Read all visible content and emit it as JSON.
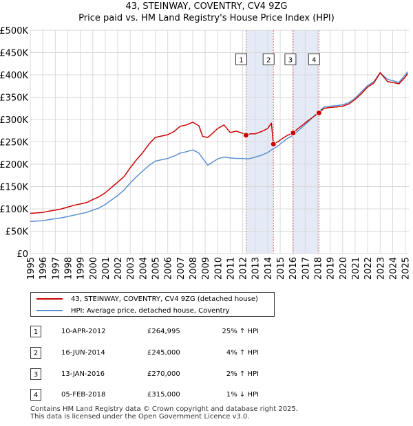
{
  "title_line1": "43, STEINWAY, COVENTRY, CV4 9ZG",
  "title_line2": "Price paid vs. HM Land Registry's House Price Index (HPI)",
  "colors": {
    "property": "#cc0000",
    "hpi": "#5b8fd0",
    "shade": "#dde6f5",
    "marker": "#cc0000"
  },
  "chart_data": {
    "type": "line",
    "title": "Price paid vs. HM Land Registry's House Price Index (HPI)",
    "xlabel": "",
    "ylabel": "",
    "xlim": [
      1995,
      2025.3
    ],
    "ylim": [
      0,
      500000
    ],
    "y_ticks": [
      0,
      50000,
      100000,
      150000,
      200000,
      250000,
      300000,
      350000,
      400000,
      450000,
      500000
    ],
    "y_tick_labels": [
      "£0",
      "£50K",
      "£100K",
      "£150K",
      "£200K",
      "£250K",
      "£300K",
      "£350K",
      "£400K",
      "£450K",
      "£500K"
    ],
    "x_ticks": [
      1995,
      1996,
      1997,
      1998,
      1999,
      2000,
      2001,
      2002,
      2003,
      2004,
      2005,
      2006,
      2007,
      2008,
      2009,
      2010,
      2011,
      2012,
      2013,
      2014,
      2015,
      2016,
      2017,
      2018,
      2019,
      2020,
      2021,
      2022,
      2023,
      2024,
      2025
    ],
    "x_tick_labels": [
      "1995",
      "1996",
      "1997",
      "1998",
      "1999",
      "2000",
      "2001",
      "2002",
      "2003",
      "2004",
      "2005",
      "2006",
      "2007",
      "2008",
      "2009",
      "2010",
      "2011",
      "2012",
      "2013",
      "2014",
      "2015",
      "2016",
      "2017",
      "2018",
      "2019",
      "2020",
      "2021",
      "2022",
      "2023",
      "2024",
      "2025"
    ],
    "grid": true,
    "shaded_ranges": [
      [
        2012.27,
        2014.46
      ],
      [
        2016.04,
        2018.1
      ]
    ],
    "series": [
      {
        "name": "43, STEINWAY, COVENTRY, CV4 9ZG (detached house)",
        "x": [
          1995.0,
          1996.0,
          1996.5,
          1997.0,
          1997.5,
          1998.0,
          1998.5,
          1999.0,
          1999.5,
          2000.0,
          2000.5,
          2001.0,
          2001.5,
          2002.0,
          2002.5,
          2003.0,
          2003.5,
          2004.0,
          2004.5,
          2005.0,
          2005.5,
          2006.0,
          2006.5,
          2007.0,
          2007.5,
          2008.0,
          2008.5,
          2008.8,
          2009.2,
          2009.5,
          2010.0,
          2010.5,
          2011.0,
          2011.5,
          2012.0,
          2012.27,
          2012.6,
          2013.0,
          2013.5,
          2014.0,
          2014.3,
          2014.46,
          2014.8,
          2015.2,
          2015.6,
          2016.04,
          2016.4,
          2016.8,
          2017.2,
          2017.6,
          2018.1,
          2018.5,
          2019.0,
          2019.5,
          2020.0,
          2020.5,
          2021.0,
          2021.5,
          2022.0,
          2022.5,
          2023.0,
          2023.3,
          2023.6,
          2024.0,
          2024.5,
          2025.0,
          2025.2
        ],
        "values": [
          90000,
          92000,
          95000,
          97000,
          100000,
          104000,
          108000,
          111000,
          114000,
          121000,
          127000,
          136000,
          148000,
          160000,
          172000,
          192000,
          210000,
          226000,
          245000,
          260000,
          263000,
          266000,
          273000,
          285000,
          288000,
          294000,
          286000,
          262000,
          260000,
          267000,
          280000,
          288000,
          271000,
          274000,
          269000,
          264995,
          268000,
          268000,
          273000,
          280000,
          292000,
          245000,
          250000,
          258000,
          265000,
          270000,
          279000,
          288000,
          297000,
          305000,
          315000,
          325000,
          327000,
          328000,
          330000,
          335000,
          345000,
          358000,
          373000,
          382000,
          405000,
          395000,
          385000,
          383000,
          380000,
          395000,
          403000
        ]
      },
      {
        "name": "HPI: Average price, detached house, Coventry",
        "x": [
          1995.0,
          1996.0,
          1996.5,
          1997.0,
          1997.5,
          1998.0,
          1998.5,
          1999.0,
          1999.5,
          2000.0,
          2000.5,
          2001.0,
          2001.5,
          2002.0,
          2002.5,
          2003.0,
          2003.5,
          2004.0,
          2004.5,
          2005.0,
          2005.5,
          2006.0,
          2006.5,
          2007.0,
          2007.5,
          2008.0,
          2008.5,
          2008.8,
          2009.2,
          2009.5,
          2010.0,
          2010.5,
          2011.0,
          2011.5,
          2012.0,
          2012.27,
          2012.6,
          2013.0,
          2013.5,
          2014.0,
          2014.46,
          2014.8,
          2015.2,
          2015.6,
          2016.04,
          2016.4,
          2016.8,
          2017.2,
          2017.6,
          2018.1,
          2018.5,
          2019.0,
          2019.5,
          2020.0,
          2020.5,
          2021.0,
          2021.5,
          2022.0,
          2022.5,
          2023.0,
          2023.3,
          2023.6,
          2024.0,
          2024.5,
          2025.0,
          2025.2
        ],
        "values": [
          72000,
          73500,
          76000,
          78000,
          80000,
          83000,
          86000,
          89000,
          92000,
          97000,
          102000,
          110000,
          120000,
          130000,
          142000,
          158000,
          172000,
          185000,
          197000,
          207000,
          210000,
          213000,
          218000,
          225000,
          228000,
          232000,
          225000,
          213000,
          198000,
          203000,
          212000,
          216000,
          214000,
          213000,
          213000,
          212000,
          213000,
          216000,
          220000,
          226000,
          235000,
          240000,
          250000,
          258000,
          265000,
          274000,
          284000,
          294000,
          305000,
          318000,
          328000,
          330000,
          331000,
          333000,
          338000,
          348000,
          362000,
          376000,
          385000,
          405000,
          397000,
          390000,
          387000,
          383000,
          400000,
          407000
        ]
      }
    ],
    "sales": [
      {
        "label": "1",
        "x": 2012.27,
        "value": 264995
      },
      {
        "label": "2",
        "x": 2014.46,
        "value": 245000
      },
      {
        "label": "3",
        "x": 2016.04,
        "value": 270000
      },
      {
        "label": "4",
        "x": 2018.1,
        "value": 315000
      }
    ],
    "sale_label_value": 435000
  },
  "legend": {
    "property": "43, STEINWAY, COVENTRY, CV4 9ZG (detached house)",
    "hpi": "HPI: Average price, detached house, Coventry"
  },
  "transactions": [
    {
      "num": "1",
      "date": "10-APR-2012",
      "price": "£264,995",
      "hpi": "25% ↑ HPI"
    },
    {
      "num": "2",
      "date": "16-JUN-2014",
      "price": "£245,000",
      "hpi": "4% ↑ HPI"
    },
    {
      "num": "3",
      "date": "13-JAN-2016",
      "price": "£270,000",
      "hpi": "2% ↑ HPI"
    },
    {
      "num": "4",
      "date": "05-FEB-2018",
      "price": "£315,000",
      "hpi": "1% ↓ HPI"
    }
  ],
  "footer": {
    "line1": "Contains HM Land Registry data © Crown copyright and database right 2025.",
    "line2": "This data is licensed under the Open Government Licence v3.0."
  }
}
